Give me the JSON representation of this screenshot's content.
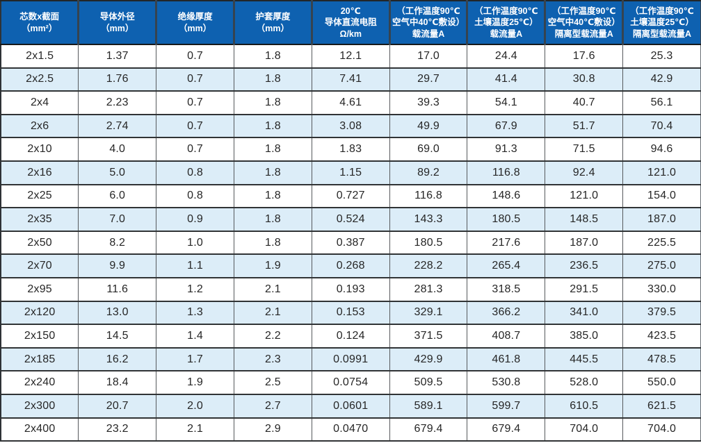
{
  "colors": {
    "header_bg": "#0e61b0",
    "header_text": "#ffffff",
    "header_divider": "#36434f",
    "row_bg": "#ffffff",
    "row_alt_bg": "#dcedf8",
    "cell_text": "#262626",
    "grid_line": "#303335"
  },
  "table": {
    "columns": [
      {
        "name": "cores-x-section",
        "lines": [
          "芯数x截面",
          "（mm²）"
        ]
      },
      {
        "name": "conductor-outer-diameter",
        "lines": [
          "导体外径",
          "（mm）"
        ]
      },
      {
        "name": "insulation-thickness",
        "lines": [
          "绝缘厚度",
          "（mm）"
        ]
      },
      {
        "name": "sheath-thickness",
        "lines": [
          "护套厚度",
          "（mm）"
        ]
      },
      {
        "name": "dc-resistance-20c",
        "lines": [
          "20℃",
          "导体直流电阻",
          "Ω/km"
        ]
      },
      {
        "name": "ampacity-air-40c",
        "lines": [
          "（工作温度90℃",
          "空气中40℃敷设）",
          "载流量A"
        ]
      },
      {
        "name": "ampacity-soil-25c",
        "lines": [
          "（工作温度90℃",
          "土壤温度25℃）",
          "载流量A"
        ]
      },
      {
        "name": "isolated-ampacity-air-40c",
        "lines": [
          "（工作温度90℃",
          "空气中40℃敷设）",
          "隔离型载流量A"
        ]
      },
      {
        "name": "isolated-ampacity-soil-25c",
        "lines": [
          "（工作温度90℃",
          "土壤温度25℃）",
          "隔离型载流量A"
        ]
      }
    ],
    "rows": [
      [
        "2x1.5",
        "1.37",
        "0.7",
        "1.8",
        "12.1",
        "17.0",
        "24.4",
        "17.6",
        "25.3"
      ],
      [
        "2x2.5",
        "1.76",
        "0.7",
        "1.8",
        "7.41",
        "29.7",
        "41.4",
        "30.8",
        "42.9"
      ],
      [
        "2x4",
        "2.23",
        "0.7",
        "1.8",
        "4.61",
        "39.3",
        "54.1",
        "40.7",
        "56.1"
      ],
      [
        "2x6",
        "2.74",
        "0.7",
        "1.8",
        "3.08",
        "49.9",
        "67.9",
        "51.7",
        "70.4"
      ],
      [
        "2x10",
        "4.0",
        "0.7",
        "1.8",
        "1.83",
        "69.0",
        "91.3",
        "71.5",
        "94.6"
      ],
      [
        "2x16",
        "5.0",
        "0.8",
        "1.8",
        "1.15",
        "89.2",
        "116.8",
        "92.4",
        "121.0"
      ],
      [
        "2x25",
        "6.0",
        "0.8",
        "1.8",
        "0.727",
        "116.8",
        "148.6",
        "121.0",
        "154.0"
      ],
      [
        "2x35",
        "7.0",
        "0.9",
        "1.8",
        "0.524",
        "143.3",
        "180.5",
        "148.5",
        "187.0"
      ],
      [
        "2x50",
        "8.2",
        "1.0",
        "1.8",
        "0.387",
        "180.5",
        "217.6",
        "187.0",
        "225.5"
      ],
      [
        "2x70",
        "9.9",
        "1.1",
        "1.9",
        "0.268",
        "228.2",
        "265.4",
        "236.5",
        "275.0"
      ],
      [
        "2x95",
        "11.6",
        "1.2",
        "2.1",
        "0.193",
        "281.3",
        "318.5",
        "291.5",
        "330.0"
      ],
      [
        "2x120",
        "13.0",
        "1.3",
        "2.1",
        "0.153",
        "329.1",
        "366.2",
        "341.0",
        "379.5"
      ],
      [
        "2x150",
        "14.5",
        "1.4",
        "2.2",
        "0.124",
        "371.5",
        "408.7",
        "385.0",
        "423.5"
      ],
      [
        "2x185",
        "16.2",
        "1.7",
        "2.3",
        "0.0991",
        "429.9",
        "461.8",
        "445.5",
        "478.5"
      ],
      [
        "2x240",
        "18.4",
        "1.9",
        "2.5",
        "0.0754",
        "509.5",
        "530.8",
        "528.0",
        "550.0"
      ],
      [
        "2x300",
        "20.7",
        "2.0",
        "2.7",
        "0.0601",
        "589.1",
        "599.7",
        "610.5",
        "621.5"
      ],
      [
        "2x400",
        "23.2",
        "2.1",
        "2.9",
        "0.0470",
        "679.4",
        "679.4",
        "704.0",
        "704.0"
      ]
    ]
  }
}
